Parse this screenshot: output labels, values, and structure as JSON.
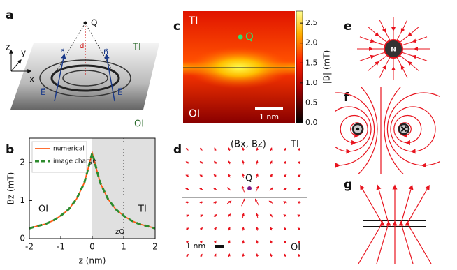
{
  "chart_data": [
    {
      "type": "line",
      "panel_label": "b",
      "xlabel": "z (nm)",
      "ylabel": "Bz (mT)",
      "x": [
        -2,
        -1.75,
        -1.5,
        -1.25,
        -1,
        -0.75,
        -0.5,
        -0.25,
        0,
        0.25,
        0.5,
        0.75,
        1,
        1.25,
        1.5,
        1.75,
        2
      ],
      "series": [
        {
          "name": "numerical",
          "color": "#ff5a14",
          "dashed": false,
          "values": [
            0.27,
            0.33,
            0.38,
            0.47,
            0.6,
            0.77,
            1.04,
            1.47,
            2.25,
            1.47,
            1.04,
            0.77,
            0.6,
            0.47,
            0.38,
            0.33,
            0.27
          ]
        },
        {
          "name": "image charge",
          "color": "#2e8b2e",
          "dashed": true,
          "values": [
            0.27,
            0.33,
            0.38,
            0.47,
            0.6,
            0.77,
            1.04,
            1.47,
            2.25,
            1.47,
            1.04,
            0.77,
            0.6,
            0.47,
            0.38,
            0.33,
            0.27
          ]
        }
      ],
      "xlim": [
        -2,
        2
      ],
      "ylim": [
        0,
        2.64
      ],
      "xticks": [
        -2,
        -1,
        0,
        1,
        2
      ],
      "yticks": [
        0,
        1,
        2
      ],
      "shaded": [
        0,
        2
      ],
      "vline": 1,
      "vline_label": "zQ",
      "regions": [
        "OI",
        "TI"
      ]
    },
    {
      "type": "heatmap",
      "panel_label": "c",
      "clim": [
        0,
        2.8
      ],
      "cticks": [
        {
          "value": 0,
          "label": "0.0"
        },
        {
          "value": 0.5,
          "label": "0.5"
        },
        {
          "value": 1,
          "label": "1.0"
        },
        {
          "value": 1.5,
          "label": "1.5"
        },
        {
          "value": 2,
          "label": "2.0"
        },
        {
          "value": 2.5,
          "label": "2.5"
        }
      ],
      "colorbar_label": "|B| (mT)",
      "top": "TI",
      "bottom": "OI",
      "point": "Q",
      "scalebar": "1 nm"
    }
  ],
  "panels": {
    "a": {
      "label": "a",
      "charge": "Q",
      "distance": "d",
      "axes": [
        "z",
        "y",
        "x"
      ],
      "normals": [
        "n⃗",
        "n⃗"
      ],
      "fields": [
        "E⃗",
        "E⃗"
      ],
      "top": "TI",
      "bottom": "OI"
    },
    "d": {
      "label": "d",
      "title": "(Bx, Bz)",
      "top": "TI",
      "charge": "Q",
      "scalebar": "1 nm",
      "bottom": "OI"
    },
    "e": {
      "label": "e",
      "pole": "N"
    },
    "f": {
      "label": "f"
    },
    "g": {
      "label": "g"
    }
  }
}
